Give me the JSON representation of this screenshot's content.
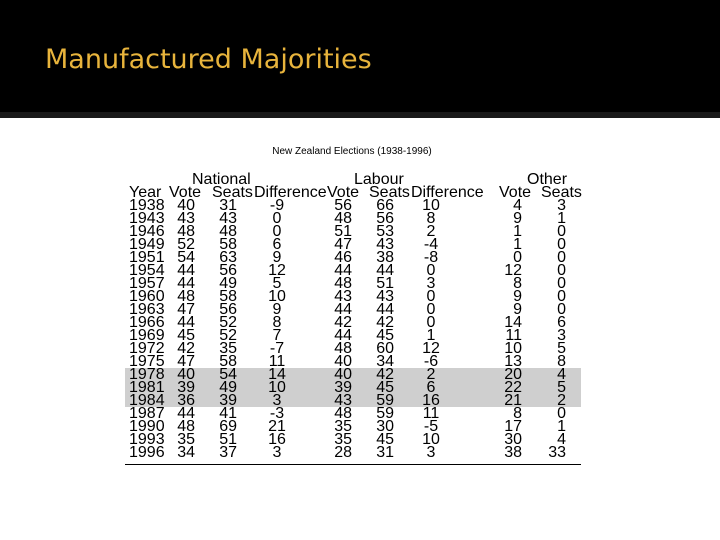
{
  "slide": {
    "title": "Manufactured Majorities"
  },
  "table": {
    "caption": "New Zealand Elections (1938-1996)",
    "groups": {
      "national": "National",
      "labour": "Labour",
      "other": "Other"
    },
    "headers": {
      "year": "Year",
      "nat_vote": "Vote",
      "nat_seats": "Seats",
      "nat_diff": "Difference",
      "lab_vote": "Vote",
      "lab_seats": "Seats",
      "lab_diff": "Difference",
      "oth_vote": "Vote",
      "oth_seats": "Seats"
    },
    "shaded_years": [
      "1978",
      "1981",
      "1984"
    ],
    "rows": [
      [
        "1938",
        "40",
        "31",
        "-9",
        "56",
        "66",
        "10",
        "4",
        "3"
      ],
      [
        "1943",
        "43",
        "43",
        "0",
        "48",
        "56",
        "8",
        "9",
        "1"
      ],
      [
        "1946",
        "48",
        "48",
        "0",
        "51",
        "53",
        "2",
        "1",
        "0"
      ],
      [
        "1949",
        "52",
        "58",
        "6",
        "47",
        "43",
        "-4",
        "1",
        "0"
      ],
      [
        "1951",
        "54",
        "63",
        "9",
        "46",
        "38",
        "-8",
        "0",
        "0"
      ],
      [
        "1954",
        "44",
        "56",
        "12",
        "44",
        "44",
        "0",
        "12",
        "0"
      ],
      [
        "1957",
        "44",
        "49",
        "5",
        "48",
        "51",
        "3",
        "8",
        "0"
      ],
      [
        "1960",
        "48",
        "58",
        "10",
        "43",
        "43",
        "0",
        "9",
        "0"
      ],
      [
        "1963",
        "47",
        "56",
        "9",
        "44",
        "44",
        "0",
        "9",
        "0"
      ],
      [
        "1966",
        "44",
        "52",
        "8",
        "42",
        "42",
        "0",
        "14",
        "6"
      ],
      [
        "1969",
        "45",
        "52",
        "7",
        "44",
        "45",
        "1",
        "11",
        "3"
      ],
      [
        "1972",
        "42",
        "35",
        "-7",
        "48",
        "60",
        "12",
        "10",
        "5"
      ],
      [
        "1975",
        "47",
        "58",
        "11",
        "40",
        "34",
        "-6",
        "13",
        "8"
      ],
      [
        "1978",
        "40",
        "54",
        "14",
        "40",
        "42",
        "2",
        "20",
        "4"
      ],
      [
        "1981",
        "39",
        "49",
        "10",
        "39",
        "45",
        "6",
        "22",
        "5"
      ],
      [
        "1984",
        "36",
        "39",
        "3",
        "43",
        "59",
        "16",
        "21",
        "2"
      ],
      [
        "1987",
        "44",
        "41",
        "-3",
        "48",
        "59",
        "11",
        "8",
        "0"
      ],
      [
        "1990",
        "48",
        "69",
        "21",
        "35",
        "30",
        "-5",
        "17",
        "1"
      ],
      [
        "1993",
        "35",
        "51",
        "16",
        "35",
        "45",
        "10",
        "30",
        "4"
      ],
      [
        "1996",
        "34",
        "37",
        "3",
        "28",
        "31",
        "3",
        "38",
        "33"
      ]
    ]
  }
}
